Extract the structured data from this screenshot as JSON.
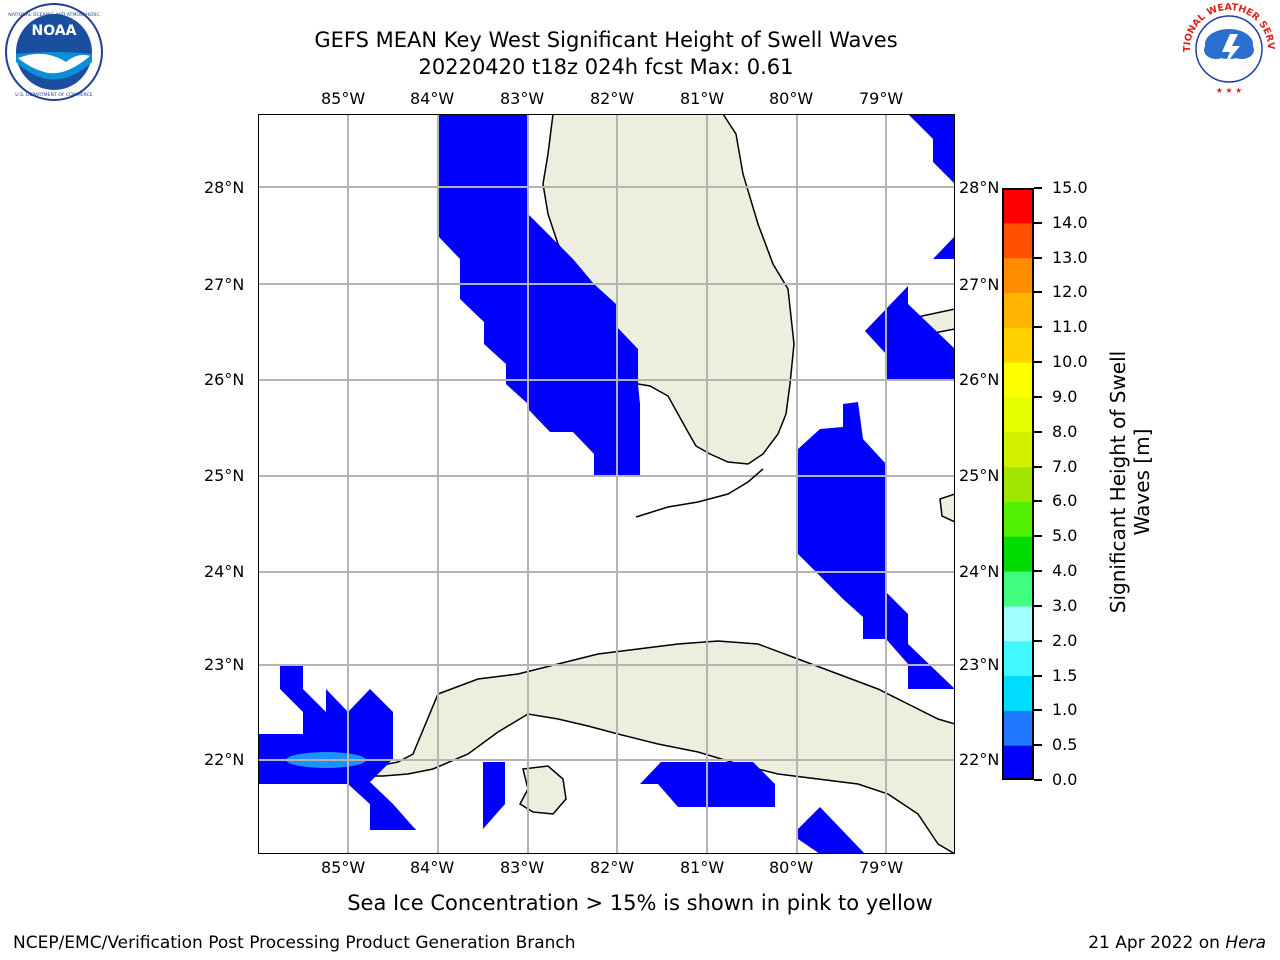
{
  "header": {
    "title": "GEFS MEAN Key West Significant Height of Swell Waves",
    "subtitle": "20220420 t18z 024h fcst   Max: 0.61"
  },
  "logos": {
    "left": {
      "name": "NOAA",
      "ring_text": "NATIONAL OCEANIC AND ATMOSPHERIC ADMINISTRATION",
      "bottom_text": "U.S. DEPARTMENT OF COMMERCE"
    },
    "right": {
      "name": "NATIONAL WEATHER SERVICE"
    }
  },
  "map": {
    "lon_labels_top": [
      "85°W",
      "84°W",
      "83°W",
      "82°W",
      "81°W",
      "80°W",
      "79°W"
    ],
    "lon_labels_bottom": [
      "85°W",
      "84°W",
      "83°W",
      "82°W",
      "81°W",
      "80°W",
      "79°W"
    ],
    "lat_labels_left": [
      "28°N",
      "27°N",
      "26°N",
      "25°N",
      "24°N",
      "23°N",
      "22°N"
    ],
    "lat_labels_right": [
      "28°N",
      "27°N",
      "26°N",
      "25°N",
      "24°N",
      "23°N",
      "22°N"
    ],
    "extent": {
      "lon": [
        -86.0,
        -78.25
      ],
      "lat": [
        21.0,
        28.75
      ]
    },
    "colors": {
      "land": "#eeeede",
      "ocean": "#ffffff",
      "swell_low": "#0000ff",
      "swell_mid": "#1e90ff",
      "grid": "#b4b4b4"
    }
  },
  "colorbar": {
    "title_line1": "Significant Height of Swell",
    "title_line2": "Waves [m]",
    "levels": [
      "0.0",
      "0.5",
      "1.0",
      "1.5",
      "2.0",
      "3.0",
      "4.0",
      "5.0",
      "6.0",
      "7.0",
      "8.0",
      "9.0",
      "10.0",
      "11.0",
      "12.0",
      "13.0",
      "14.0",
      "15.0"
    ],
    "colors": [
      "#0000ff",
      "#1e78ff",
      "#00dcff",
      "#40f8ff",
      "#a0ffff",
      "#40ff80",
      "#00dc00",
      "#50f000",
      "#a0e600",
      "#d2f000",
      "#e6ff00",
      "#ffff00",
      "#ffd200",
      "#ffb400",
      "#ff8c00",
      "#ff5000",
      "#ff0000"
    ]
  },
  "notes": {
    "sea_ice": "Sea Ice Concentration > 15% is shown in pink to yellow"
  },
  "footer": {
    "left": "NCEP/EMC/Verification Post Processing Product Generation Branch",
    "right_prefix": "21 Apr 2022 on ",
    "right_machine": "Hera"
  }
}
